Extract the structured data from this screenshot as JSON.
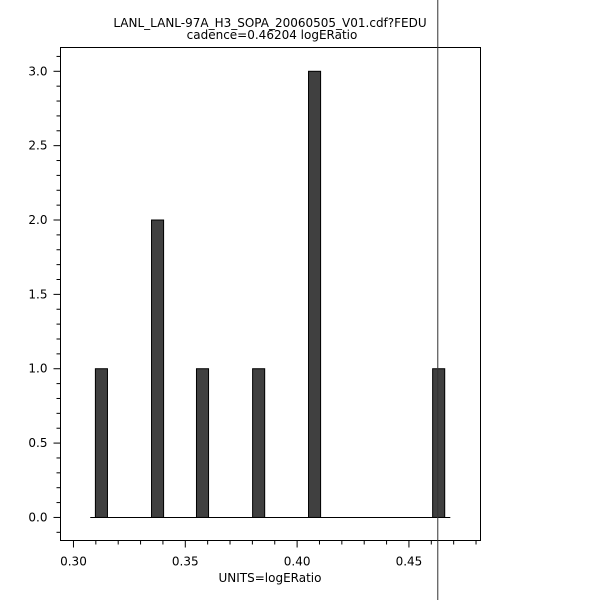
{
  "chart_data": {
    "type": "bar",
    "title": "LANL_LANL-97A_H3_SOPA_20060505_V01.cdf?FEDU",
    "subtitle": "cadence=0.46204 logERatio",
    "xlabel": "UNITS=logERatio",
    "ylabel": "",
    "xlim": [
      0.2942,
      0.482
    ],
    "ylim": [
      -0.155,
      3.16
    ],
    "xticks": [
      "0.30",
      "0.35",
      "0.40",
      "0.45"
    ],
    "xtick_values": [
      0.3,
      0.35,
      0.4,
      0.45
    ],
    "yticks": [
      "0.0",
      "0.5",
      "1.0",
      "1.5",
      "2.0",
      "2.5",
      "3.0"
    ],
    "ytick_values": [
      0,
      0.5,
      1.0,
      1.5,
      2.0,
      2.5,
      3.0
    ],
    "x": [
      0.3125,
      0.3376,
      0.3577,
      0.3828,
      0.4078,
      0.4633
    ],
    "values": [
      1,
      2,
      1,
      1,
      3,
      1
    ],
    "bar_width": 0.0054,
    "baseline_range": [
      0.3075,
      0.4685
    ],
    "marker_line_x": 0.4629,
    "grid": false,
    "bar_color": "#404040"
  }
}
